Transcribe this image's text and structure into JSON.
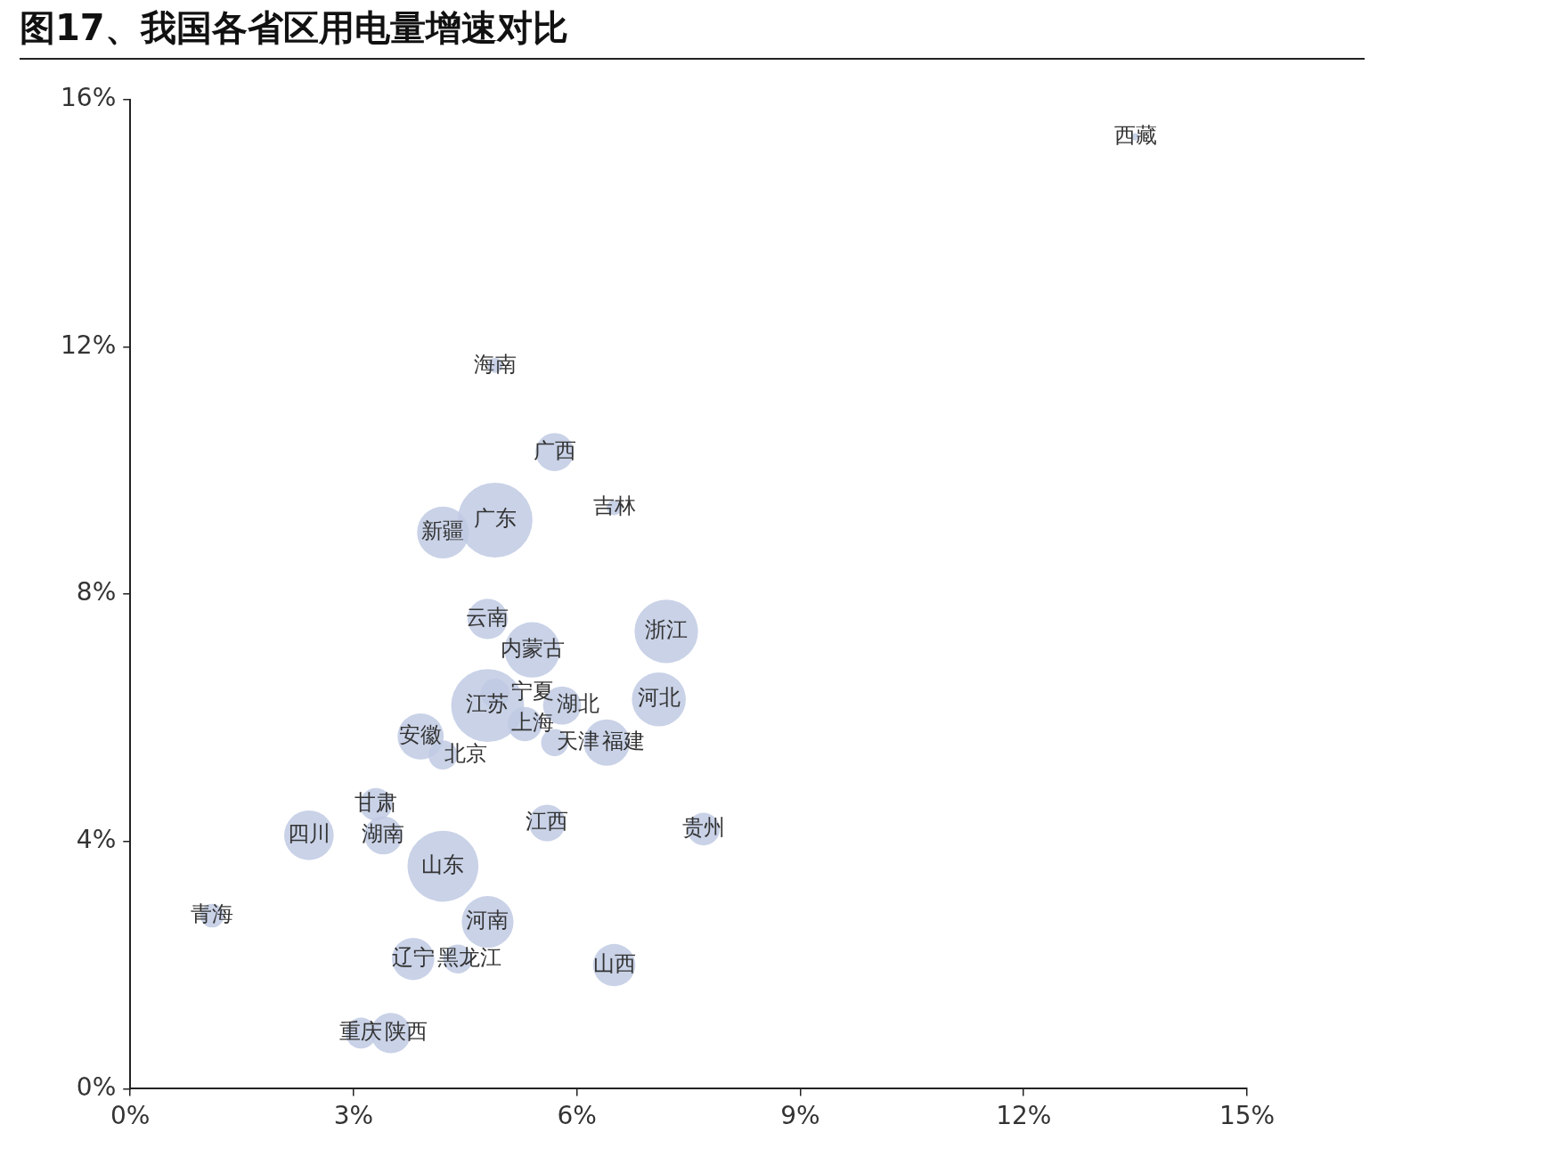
{
  "chart_data": {
    "type": "bubble",
    "title": "图17、我国各省区用电量增速对比",
    "xlim": [
      0,
      15
    ],
    "ylim": [
      0,
      16
    ],
    "xticks": [
      {
        "value": 0,
        "label": "0%"
      },
      {
        "value": 3,
        "label": "3%"
      },
      {
        "value": 6,
        "label": "6%"
      },
      {
        "value": 9,
        "label": "9%"
      },
      {
        "value": 12,
        "label": "12%"
      },
      {
        "value": 15,
        "label": "15%"
      }
    ],
    "yticks": [
      {
        "value": 0,
        "label": "0%"
      },
      {
        "value": 4,
        "label": "4%"
      },
      {
        "value": 8,
        "label": "8%"
      },
      {
        "value": 12,
        "label": "12%"
      },
      {
        "value": 16,
        "label": "16%"
      }
    ],
    "grid": false,
    "legend": false,
    "series": [
      {
        "color": "#c0cae3",
        "x": [
          13.5,
          4.9,
          5.7,
          6.5,
          4.9,
          4.2,
          4.8,
          5.4,
          7.2,
          4.8,
          4.9,
          5.3,
          5.8,
          5.7,
          6.4,
          7.1,
          3.9,
          4.2,
          3.3,
          3.4,
          4.2,
          5.6,
          7.7,
          4.8,
          2.4,
          1.1,
          3.8,
          4.4,
          6.5,
          3.1,
          3.5
        ],
        "values": [
          15.4,
          11.7,
          10.3,
          9.4,
          9.2,
          9.0,
          7.6,
          7.1,
          7.4,
          6.2,
          6.4,
          5.9,
          6.2,
          5.6,
          5.6,
          6.3,
          5.7,
          5.4,
          4.6,
          4.1,
          3.6,
          4.3,
          4.2,
          2.7,
          4.1,
          2.8,
          2.1,
          2.1,
          2.0,
          0.9,
          0.9
        ],
        "sizes": [
          0.01,
          0.04,
          0.26,
          0.04,
          1,
          0.48,
          0.29,
          0.55,
          0.72,
          0.95,
          0.15,
          0.21,
          0.26,
          0.13,
          0.38,
          0.52,
          0.38,
          0.15,
          0.19,
          0.26,
          0.9,
          0.24,
          0.19,
          0.48,
          0.44,
          0.1,
          0.32,
          0.15,
          0.32,
          0.17,
          0.29
        ]
      }
    ],
    "annotations": [
      {
        "text": "西藏",
        "x": 13.5,
        "y": 15.4
      },
      {
        "text": "海南",
        "x": 4.9,
        "y": 11.7
      },
      {
        "text": "广西",
        "x": 5.7,
        "y": 10.3
      },
      {
        "text": "吉林",
        "x": 6.5,
        "y": 9.4
      },
      {
        "text": "广东",
        "x": 4.9,
        "y": 9.2
      },
      {
        "text": "新疆",
        "x": 4.2,
        "y": 9.0
      },
      {
        "text": "云南",
        "x": 4.8,
        "y": 7.6
      },
      {
        "text": "内蒙古",
        "x": 5.4,
        "y": 7.1
      },
      {
        "text": "浙江",
        "x": 7.2,
        "y": 7.4
      },
      {
        "text": "江苏",
        "x": 4.8,
        "y": 6.2
      },
      {
        "text": "宁夏",
        "x": 4.9,
        "y": 6.4
      },
      {
        "text": "上海",
        "x": 5.3,
        "y": 5.9
      },
      {
        "text": "湖北",
        "x": 5.8,
        "y": 6.2
      },
      {
        "text": "天津",
        "x": 5.7,
        "y": 5.6
      },
      {
        "text": "福建",
        "x": 6.4,
        "y": 5.6
      },
      {
        "text": "河北",
        "x": 7.1,
        "y": 6.3
      },
      {
        "text": "安徽",
        "x": 3.9,
        "y": 5.7
      },
      {
        "text": "北京",
        "x": 4.2,
        "y": 5.4
      },
      {
        "text": "甘肃",
        "x": 3.3,
        "y": 4.6
      },
      {
        "text": "湖南",
        "x": 3.4,
        "y": 4.1
      },
      {
        "text": "山东",
        "x": 4.2,
        "y": 3.6
      },
      {
        "text": "江西",
        "x": 5.6,
        "y": 4.3
      },
      {
        "text": "贵州",
        "x": 7.7,
        "y": 4.2
      },
      {
        "text": "河南",
        "x": 4.8,
        "y": 2.7
      },
      {
        "text": "四川",
        "x": 2.4,
        "y": 4.1
      },
      {
        "text": "青海",
        "x": 1.1,
        "y": 2.8
      },
      {
        "text": "辽宁",
        "x": 3.8,
        "y": 2.1
      },
      {
        "text": "黑龙江",
        "x": 4.4,
        "y": 2.1
      },
      {
        "text": "山西",
        "x": 6.5,
        "y": 2.0
      },
      {
        "text": "重庆",
        "x": 3.1,
        "y": 0.9
      },
      {
        "text": "陕西",
        "x": 3.5,
        "y": 0.9
      }
    ]
  }
}
